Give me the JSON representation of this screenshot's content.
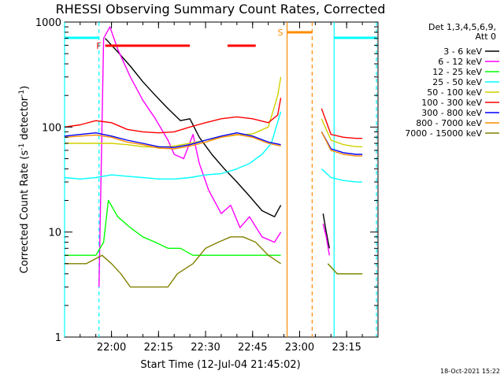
{
  "chart_data": {
    "type": "line",
    "title": "RHESSI Observing Summary Count Rates, Corrected",
    "xlabel": "Start Time (12-Jul-04 21:45:02)",
    "ylabel_main": "Corrected Count Rate (s",
    "ylabel_sup1": "-1",
    "ylabel_mid": " detector",
    "ylabel_sup2": "-1",
    "ylabel_end": ")",
    "y_scale": "log",
    "ylim": [
      1,
      1000
    ],
    "xlim": [
      "21:45:02",
      "23:25:00"
    ],
    "x_ticks": [
      "22:00",
      "22:15",
      "22:30",
      "22:45",
      "23:00",
      "23:15"
    ],
    "y_ticks": [
      "1",
      "10",
      "100",
      "1000"
    ],
    "detector_header_line1": "Det 1,3,4,5,6,9,",
    "detector_header_line2": "Att 0",
    "timestamp": "18-Oct-2021 15:22",
    "grid": false,
    "legend_position": "right",
    "series": [
      {
        "name": "3 - 6 keV",
        "color": "#000000",
        "points": [
          [
            "21:58:00",
            700
          ],
          [
            "22:02:00",
            520
          ],
          [
            "22:06:00",
            380
          ],
          [
            "22:10:00",
            270
          ],
          [
            "22:14:00",
            200
          ],
          [
            "22:18:00",
            150
          ],
          [
            "22:22:00",
            115
          ],
          [
            "22:25:00",
            120
          ],
          [
            "22:28:00",
            80
          ],
          [
            "22:32:00",
            55
          ],
          [
            "22:36:00",
            40
          ],
          [
            "22:40:00",
            30
          ],
          [
            "22:44:00",
            22
          ],
          [
            "22:48:00",
            16
          ],
          [
            "22:52:00",
            14
          ],
          [
            "22:54:00",
            18
          ]
        ]
      },
      {
        "name": "6 - 12 keV",
        "color": "#ff00ff",
        "points": [
          [
            "21:56:00",
            3
          ],
          [
            "21:57:30",
            700
          ],
          [
            "21:59:30",
            900
          ],
          [
            "22:02:00",
            550
          ],
          [
            "22:06:00",
            300
          ],
          [
            "22:10:00",
            180
          ],
          [
            "22:14:00",
            120
          ],
          [
            "22:18:00",
            75
          ],
          [
            "22:20:00",
            55
          ],
          [
            "22:23:00",
            50
          ],
          [
            "22:26:00",
            85
          ],
          [
            "22:28:00",
            45
          ],
          [
            "22:31:00",
            25
          ],
          [
            "22:35:00",
            15
          ],
          [
            "22:38:00",
            18
          ],
          [
            "22:41:00",
            11
          ],
          [
            "22:44:00",
            14
          ],
          [
            "22:48:00",
            9
          ],
          [
            "22:52:00",
            8
          ],
          [
            "22:54:00",
            10
          ]
        ]
      },
      {
        "name": "12 - 25 keV",
        "color": "#00ff00",
        "points": [
          [
            "21:45:02",
            6
          ],
          [
            "21:55:00",
            6
          ],
          [
            "21:57:30",
            8
          ],
          [
            "21:59:00",
            20
          ],
          [
            "22:02:00",
            14
          ],
          [
            "22:06:00",
            11
          ],
          [
            "22:10:00",
            9
          ],
          [
            "22:14:00",
            8
          ],
          [
            "22:18:00",
            7
          ],
          [
            "22:22:00",
            7
          ],
          [
            "22:26:00",
            6
          ],
          [
            "22:30:00",
            6
          ],
          [
            "22:34:00",
            6
          ],
          [
            "22:38:00",
            6
          ],
          [
            "22:42:00",
            6
          ],
          [
            "22:46:00",
            6
          ],
          [
            "22:50:00",
            6
          ],
          [
            "22:54:00",
            6
          ]
        ]
      },
      {
        "name": "25 - 50 keV",
        "color": "#00ffff",
        "points": [
          [
            "21:45:02",
            33
          ],
          [
            "21:50:00",
            32
          ],
          [
            "21:55:00",
            33
          ],
          [
            "22:00:00",
            35
          ],
          [
            "22:05:00",
            34
          ],
          [
            "22:10:00",
            33
          ],
          [
            "22:15:00",
            32
          ],
          [
            "22:20:00",
            32
          ],
          [
            "22:25:00",
            33
          ],
          [
            "22:30:00",
            35
          ],
          [
            "22:35:00",
            36
          ],
          [
            "22:40:00",
            40
          ],
          [
            "22:44:00",
            45
          ],
          [
            "22:48:00",
            55
          ],
          [
            "22:51:00",
            70
          ],
          [
            "22:54:00",
            140
          ]
        ]
      },
      {
        "name": "50 - 100 keV",
        "color": "#d0d000",
        "points": [
          [
            "21:45:02",
            70
          ],
          [
            "21:50:00",
            70
          ],
          [
            "21:55:00",
            70
          ],
          [
            "22:00:00",
            70
          ],
          [
            "22:05:00",
            68
          ],
          [
            "22:10:00",
            65
          ],
          [
            "22:15:00",
            64
          ],
          [
            "22:20:00",
            66
          ],
          [
            "22:25:00",
            70
          ],
          [
            "22:30:00",
            75
          ],
          [
            "22:35:00",
            80
          ],
          [
            "22:40:00",
            84
          ],
          [
            "22:45:00",
            86
          ],
          [
            "22:50:00",
            100
          ],
          [
            "22:53:00",
            200
          ],
          [
            "22:54:00",
            300
          ]
        ]
      },
      {
        "name": "100 - 300 keV",
        "color": "#ff0000",
        "points": [
          [
            "21:45:02",
            100
          ],
          [
            "21:50:00",
            105
          ],
          [
            "21:55:00",
            115
          ],
          [
            "22:00:00",
            110
          ],
          [
            "22:05:00",
            95
          ],
          [
            "22:10:00",
            90
          ],
          [
            "22:15:00",
            88
          ],
          [
            "22:20:00",
            90
          ],
          [
            "22:25:00",
            100
          ],
          [
            "22:30:00",
            110
          ],
          [
            "22:35:00",
            120
          ],
          [
            "22:40:00",
            125
          ],
          [
            "22:45:00",
            120
          ],
          [
            "22:50:00",
            110
          ],
          [
            "22:53:00",
            130
          ],
          [
            "22:54:00",
            190
          ]
        ]
      },
      {
        "name": "300 - 800 keV",
        "color": "#0000ff",
        "points": [
          [
            "21:45:02",
            82
          ],
          [
            "21:50:00",
            85
          ],
          [
            "21:55:00",
            88
          ],
          [
            "22:00:00",
            82
          ],
          [
            "22:05:00",
            75
          ],
          [
            "22:10:00",
            70
          ],
          [
            "22:15:00",
            65
          ],
          [
            "22:20:00",
            64
          ],
          [
            "22:25:00",
            68
          ],
          [
            "22:30:00",
            75
          ],
          [
            "22:35:00",
            82
          ],
          [
            "22:40:00",
            88
          ],
          [
            "22:45:00",
            82
          ],
          [
            "22:50:00",
            72
          ],
          [
            "22:54:00",
            68
          ]
        ]
      },
      {
        "name": "800 - 7000 keV",
        "color": "#ff8c00",
        "points": [
          [
            "21:45:02",
            80
          ],
          [
            "21:50:00",
            82
          ],
          [
            "21:55:00",
            84
          ],
          [
            "22:00:00",
            80
          ],
          [
            "22:05:00",
            72
          ],
          [
            "22:10:00",
            68
          ],
          [
            "22:15:00",
            63
          ],
          [
            "22:20:00",
            62
          ],
          [
            "22:25:00",
            66
          ],
          [
            "22:30:00",
            72
          ],
          [
            "22:35:00",
            80
          ],
          [
            "22:40:00",
            85
          ],
          [
            "22:45:00",
            80
          ],
          [
            "22:50:00",
            70
          ],
          [
            "22:54:00",
            66
          ]
        ]
      },
      {
        "name": "7000 - 15000 keV",
        "color": "#808000",
        "points": [
          [
            "21:45:02",
            5
          ],
          [
            "21:52:00",
            5
          ],
          [
            "21:57:00",
            6
          ],
          [
            "22:00:00",
            5
          ],
          [
            "22:03:00",
            4
          ],
          [
            "22:06:00",
            3
          ],
          [
            "22:12:00",
            3
          ],
          [
            "22:18:00",
            3
          ],
          [
            "22:21:00",
            4
          ],
          [
            "22:26:00",
            5
          ],
          [
            "22:30:00",
            7
          ],
          [
            "22:34:00",
            8
          ],
          [
            "22:38:00",
            9
          ],
          [
            "22:42:00",
            9
          ],
          [
            "22:46:00",
            8
          ],
          [
            "22:50:00",
            6
          ],
          [
            "22:54:00",
            5
          ]
        ]
      }
    ],
    "series_after_gap": [
      {
        "name": "3 - 6 keV",
        "color": "#000000",
        "points": [
          [
            "23:07:30",
            15
          ],
          [
            "23:08:30",
            10
          ],
          [
            "23:09:30",
            7
          ]
        ]
      },
      {
        "name": "6 - 12 keV",
        "color": "#ff00ff",
        "points": [
          [
            "23:07:30",
            12
          ],
          [
            "23:08:30",
            9
          ],
          [
            "23:09:30",
            6
          ]
        ]
      },
      {
        "name": "12 - 25 keV",
        "color": "#00ff00",
        "points": [
          [
            "23:09:00",
            5
          ],
          [
            "23:12:00",
            4
          ],
          [
            "23:15:00",
            4
          ],
          [
            "23:18:00",
            4
          ],
          [
            "23:20:00",
            4
          ]
        ]
      },
      {
        "name": "25 - 50 keV",
        "color": "#00ffff",
        "points": [
          [
            "23:07:00",
            40
          ],
          [
            "23:10:00",
            33
          ],
          [
            "23:14:00",
            31
          ],
          [
            "23:18:00",
            30
          ],
          [
            "23:20:00",
            30
          ]
        ]
      },
      {
        "name": "50 - 100 keV",
        "color": "#d0d000",
        "points": [
          [
            "23:07:00",
            120
          ],
          [
            "23:10:00",
            75
          ],
          [
            "23:14:00",
            68
          ],
          [
            "23:18:00",
            65
          ],
          [
            "23:20:00",
            65
          ]
        ]
      },
      {
        "name": "100 - 300 keV",
        "color": "#ff0000",
        "points": [
          [
            "23:07:00",
            150
          ],
          [
            "23:10:00",
            85
          ],
          [
            "23:14:00",
            80
          ],
          [
            "23:18:00",
            78
          ],
          [
            "23:20:00",
            78
          ]
        ]
      },
      {
        "name": "300 - 800 keV",
        "color": "#0000ff",
        "points": [
          [
            "23:07:00",
            90
          ],
          [
            "23:10:00",
            62
          ],
          [
            "23:14:00",
            57
          ],
          [
            "23:18:00",
            55
          ],
          [
            "23:20:00",
            55
          ]
        ]
      },
      {
        "name": "800 - 7000 keV",
        "color": "#ff8c00",
        "points": [
          [
            "23:07:00",
            90
          ],
          [
            "23:10:00",
            60
          ],
          [
            "23:14:00",
            55
          ],
          [
            "23:18:00",
            53
          ],
          [
            "23:20:00",
            53
          ]
        ]
      },
      {
        "name": "7000 - 15000 keV",
        "color": "#808000",
        "points": [
          [
            "23:09:00",
            5
          ],
          [
            "23:12:00",
            4
          ],
          [
            "23:15:00",
            4
          ],
          [
            "23:18:00",
            4
          ],
          [
            "23:20:00",
            4
          ]
        ]
      }
    ],
    "flags": [
      {
        "label": "F",
        "color": "#ff0000",
        "segments": [
          [
            "21:58:00",
            "22:25:00"
          ],
          [
            "22:37:00",
            "22:46:00"
          ]
        ]
      },
      {
        "label": "S",
        "color": "#ff8c00",
        "segments": [
          [
            "22:56:00",
            "23:04:00"
          ]
        ]
      }
    ],
    "night_bars": {
      "color": "#00ffff",
      "segments": [
        [
          "21:45:02",
          "21:56:00"
        ],
        [
          "23:11:00",
          "23:24:30"
        ]
      ]
    },
    "markers": [
      {
        "time": "21:45:02",
        "color": "#00ffff",
        "style": "solid"
      },
      {
        "time": "21:56:00",
        "color": "#00ffff",
        "style": "dashed"
      },
      {
        "time": "22:56:00",
        "color": "#ff8c00",
        "style": "solid"
      },
      {
        "time": "23:04:00",
        "color": "#ff8c00",
        "style": "dashed"
      },
      {
        "time": "23:11:00",
        "color": "#00ffff",
        "style": "solid"
      },
      {
        "time": "23:24:30",
        "color": "#00ffff",
        "style": "dashed"
      }
    ]
  }
}
